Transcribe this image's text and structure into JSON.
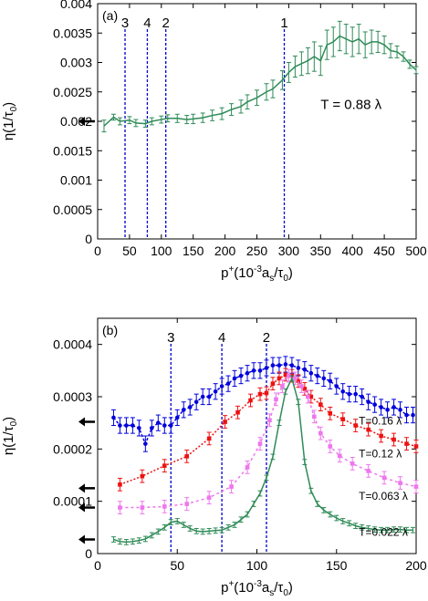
{
  "chart_data": [
    {
      "type": "line",
      "panel_label": "(a)",
      "xlabel_main": "p",
      "xlabel_sup": "+",
      "xlabel_rest": "(10",
      "xlabel_sup2": "-3",
      "xlabel_tail": "a",
      "xlabel_sub": "s",
      "xlabel_end": "/τ",
      "xlabel_sub2": "0",
      "xlabel_close": ")",
      "ylabel": "η(1/τ",
      "ylabel_sub": "0",
      "ylabel_close": ")",
      "xlim": [
        0,
        500
      ],
      "ylim": [
        0,
        0.004
      ],
      "x_ticks": [
        0,
        50,
        100,
        150,
        200,
        250,
        300,
        350,
        400,
        450,
        500
      ],
      "x_tick_labels": [
        "0",
        "50",
        "100",
        "150",
        "200",
        "250",
        "300",
        "350",
        "400",
        "450",
        "500"
      ],
      "y_ticks": [
        0,
        0.0005,
        0.001,
        0.0015,
        0.002,
        0.0025,
        0.003,
        0.0035,
        0.004
      ],
      "y_tick_labels": [
        "0",
        "0.0005",
        "0.001",
        "0.0015",
        "0.002",
        "0.0025",
        "0.003",
        "0.0035",
        "0.004"
      ],
      "annotation": "T = 0.88 λ",
      "vertical_markers": [
        {
          "label": "3",
          "x": 43
        },
        {
          "label": "4",
          "x": 78
        },
        {
          "label": "2",
          "x": 107
        },
        {
          "label": "1",
          "x": 293
        }
      ],
      "arrows": [
        {
          "y": 0.002
        }
      ],
      "series": [
        {
          "color": "#2e8b57",
          "marker": "none",
          "x": [
            10,
            25,
            35,
            50,
            60,
            75,
            85,
            100,
            110,
            125,
            140,
            150,
            165,
            180,
            195,
            210,
            225,
            235,
            250,
            265,
            275,
            290,
            300,
            310,
            320,
            330,
            340,
            350,
            360,
            370,
            380,
            390,
            400,
            410,
            420,
            430,
            440,
            450,
            460,
            470,
            480,
            490,
            500
          ],
          "y": [
            0.00192,
            0.00207,
            0.002,
            0.00202,
            0.00197,
            0.00196,
            0.002,
            0.00203,
            0.00205,
            0.00205,
            0.00203,
            0.00204,
            0.00206,
            0.0021,
            0.00213,
            0.0022,
            0.00225,
            0.00233,
            0.0024,
            0.0025,
            0.00255,
            0.0027,
            0.00283,
            0.00293,
            0.00298,
            0.00303,
            0.0031,
            0.00303,
            0.0033,
            0.00335,
            0.00345,
            0.0034,
            0.00335,
            0.0034,
            0.0033,
            0.00335,
            0.00335,
            0.0033,
            0.0032,
            0.00318,
            0.0031,
            0.00297,
            0.00287
          ],
          "err": [
            0.0001,
            5e-05,
            6e-05,
            6e-05,
            6e-05,
            6e-05,
            6e-05,
            6e-05,
            6e-05,
            7e-05,
            7e-05,
            8e-05,
            8e-05,
            9e-05,
            0.0001,
            0.0001,
            0.00011,
            0.00012,
            0.00013,
            0.00014,
            0.00015,
            0.00016,
            0.00017,
            0.00018,
            0.0002,
            0.00022,
            0.00025,
            0.00025,
            0.00025,
            0.00025,
            0.00025,
            0.00025,
            0.00025,
            0.00025,
            0.00022,
            0.0002,
            0.00018,
            0.00015,
            0.00012,
            0.0001,
            8e-05,
            7e-05,
            6e-05
          ]
        }
      ]
    },
    {
      "type": "line",
      "panel_label": "(b)",
      "xlabel_main": "p",
      "xlabel_sup": "+",
      "xlabel_rest": "(10",
      "xlabel_sup2": "-3",
      "xlabel_tail": "a",
      "xlabel_sub": "s",
      "xlabel_end": "/τ",
      "xlabel_sub2": "0",
      "xlabel_close": ")",
      "ylabel": "η(1/τ",
      "ylabel_sub": "0",
      "ylabel_close": ")",
      "xlim": [
        0,
        200
      ],
      "ylim": [
        0,
        0.00045
      ],
      "x_ticks": [
        0,
        50,
        100,
        150,
        200
      ],
      "x_tick_labels": [
        "0",
        "50",
        "100",
        "150",
        "200"
      ],
      "y_ticks": [
        0,
        0.0001,
        0.0002,
        0.0003,
        0.0004
      ],
      "y_tick_labels": [
        "0",
        "0.0001",
        "0.0002",
        "0.0003",
        "0.0004"
      ],
      "vertical_markers": [
        {
          "label": "3",
          "x": 46
        },
        {
          "label": "4",
          "x": 78
        },
        {
          "label": "2",
          "x": 106
        }
      ],
      "arrows": [
        {
          "y": 0.000252
        },
        {
          "y": 0.000125
        },
        {
          "y": 8.8e-05
        },
        {
          "y": 2.7e-05
        }
      ],
      "series": [
        {
          "name": "T=0.16  λ",
          "color": "#0000dd",
          "marker": "circle",
          "dash": "3,2",
          "label_x": 164,
          "label_y": 0.000247,
          "x": [
            10,
            14,
            18,
            22,
            26,
            30,
            34,
            38,
            42,
            46,
            50,
            54,
            58,
            62,
            66,
            70,
            74,
            78,
            82,
            86,
            90,
            94,
            98,
            102,
            106,
            110,
            114,
            118,
            122,
            126,
            130,
            134,
            138,
            142,
            146,
            150,
            154,
            158,
            162,
            166,
            170,
            174,
            178,
            182,
            186,
            190,
            194,
            198
          ],
          "y": [
            0.00026,
            0.000245,
            0.000245,
            0.000245,
            0.00024,
            0.00021,
            0.00024,
            0.00025,
            0.000245,
            0.000245,
            0.00026,
            0.000275,
            0.00028,
            0.00029,
            0.0003,
            0.0003,
            0.00031,
            0.00032,
            0.000325,
            0.000335,
            0.00034,
            0.000345,
            0.00035,
            0.00035,
            0.000355,
            0.00036,
            0.00036,
            0.000362,
            0.00036,
            0.000355,
            0.000352,
            0.000345,
            0.00034,
            0.000335,
            0.00033,
            0.00032,
            0.00031,
            0.000305,
            0.000305,
            0.0003,
            0.00029,
            0.000285,
            0.00028,
            0.000275,
            0.00028,
            0.000275,
            0.000265,
            0.000265
          ],
          "err": 1.5e-05
        },
        {
          "name": "T=0.12 λ",
          "color": "#ee1111",
          "marker": "square",
          "dash": "2,2",
          "label_x": 164,
          "label_y": 0.000184,
          "x": [
            14,
            28,
            42,
            56,
            70,
            80,
            88,
            96,
            102,
            106,
            110,
            114,
            118,
            122,
            126,
            130,
            134,
            140,
            146,
            154,
            162,
            170,
            178,
            186,
            194,
            200
          ],
          "y": [
            0.000132,
            0.000148,
            0.000168,
            0.000186,
            0.00022,
            0.000252,
            0.00027,
            0.000293,
            0.000305,
            0.000307,
            0.000325,
            0.000335,
            0.000342,
            0.00034,
            0.00033,
            0.000315,
            0.0003,
            0.000285,
            0.000268,
            0.000257,
            0.000245,
            0.000237,
            0.000225,
            0.000218,
            0.00021,
            0.000205
          ],
          "err": 1.2e-05
        },
        {
          "name": "T=0.063 λ",
          "color": "#ee77ee",
          "marker": "square",
          "dash": "3,3",
          "label_x": 164,
          "label_y": 0.000103,
          "x": [
            14,
            28,
            42,
            56,
            70,
            84,
            94,
            102,
            108,
            112,
            116,
            120,
            124,
            128,
            132,
            136,
            140,
            146,
            152,
            160,
            170,
            180,
            190,
            200
          ],
          "y": [
            8.8e-05,
            8.8e-05,
            9e-05,
            9.5e-05,
            0.000107,
            0.000128,
            0.000165,
            0.00021,
            0.000255,
            0.000295,
            0.00032,
            0.00034,
            0.000335,
            0.00032,
            0.0003,
            0.000262,
            0.00023,
            0.000205,
            0.000187,
            0.000172,
            0.000158,
            0.000145,
            0.000135,
            0.000128
          ],
          "err": 1.2e-05
        },
        {
          "name": "T=0.022 λ",
          "color": "#2e8b57",
          "marker": "none",
          "dash": "",
          "label_x": 164,
          "label_y": 3.4e-05,
          "x": [
            10,
            14,
            18,
            22,
            26,
            30,
            34,
            38,
            42,
            46,
            50,
            54,
            58,
            62,
            66,
            70,
            74,
            78,
            82,
            86,
            90,
            94,
            98,
            102,
            106,
            110,
            114,
            118,
            122,
            126,
            130,
            134,
            138,
            142,
            146,
            150,
            154,
            158,
            162,
            166,
            170,
            174,
            178,
            182,
            186,
            190,
            194,
            198
          ],
          "y": [
            2.7e-05,
            2.3e-05,
            2.2e-05,
            2.3e-05,
            2.5e-05,
            2.8e-05,
            3.5e-05,
            4.2e-05,
            5e-05,
            6e-05,
            6.2e-05,
            5.5e-05,
            4.8e-05,
            4.3e-05,
            4.2e-05,
            4.3e-05,
            4.4e-05,
            4.5e-05,
            5e-05,
            5.5e-05,
            6.5e-05,
            7.5e-05,
            9.5e-05,
            0.000115,
            0.000145,
            0.000185,
            0.00025,
            0.00031,
            0.000335,
            0.00029,
            0.000175,
            0.00012,
            9.5e-05,
            8.3e-05,
            7.5e-05,
            6.8e-05,
            6.2e-05,
            5.8e-05,
            5.3e-05,
            5e-05,
            4.8e-05,
            4.6e-05,
            4.5e-05,
            4.5e-05,
            4.6e-05,
            4.6e-05,
            4.5e-05,
            4.5e-05
          ],
          "err": 5e-06
        }
      ]
    }
  ]
}
